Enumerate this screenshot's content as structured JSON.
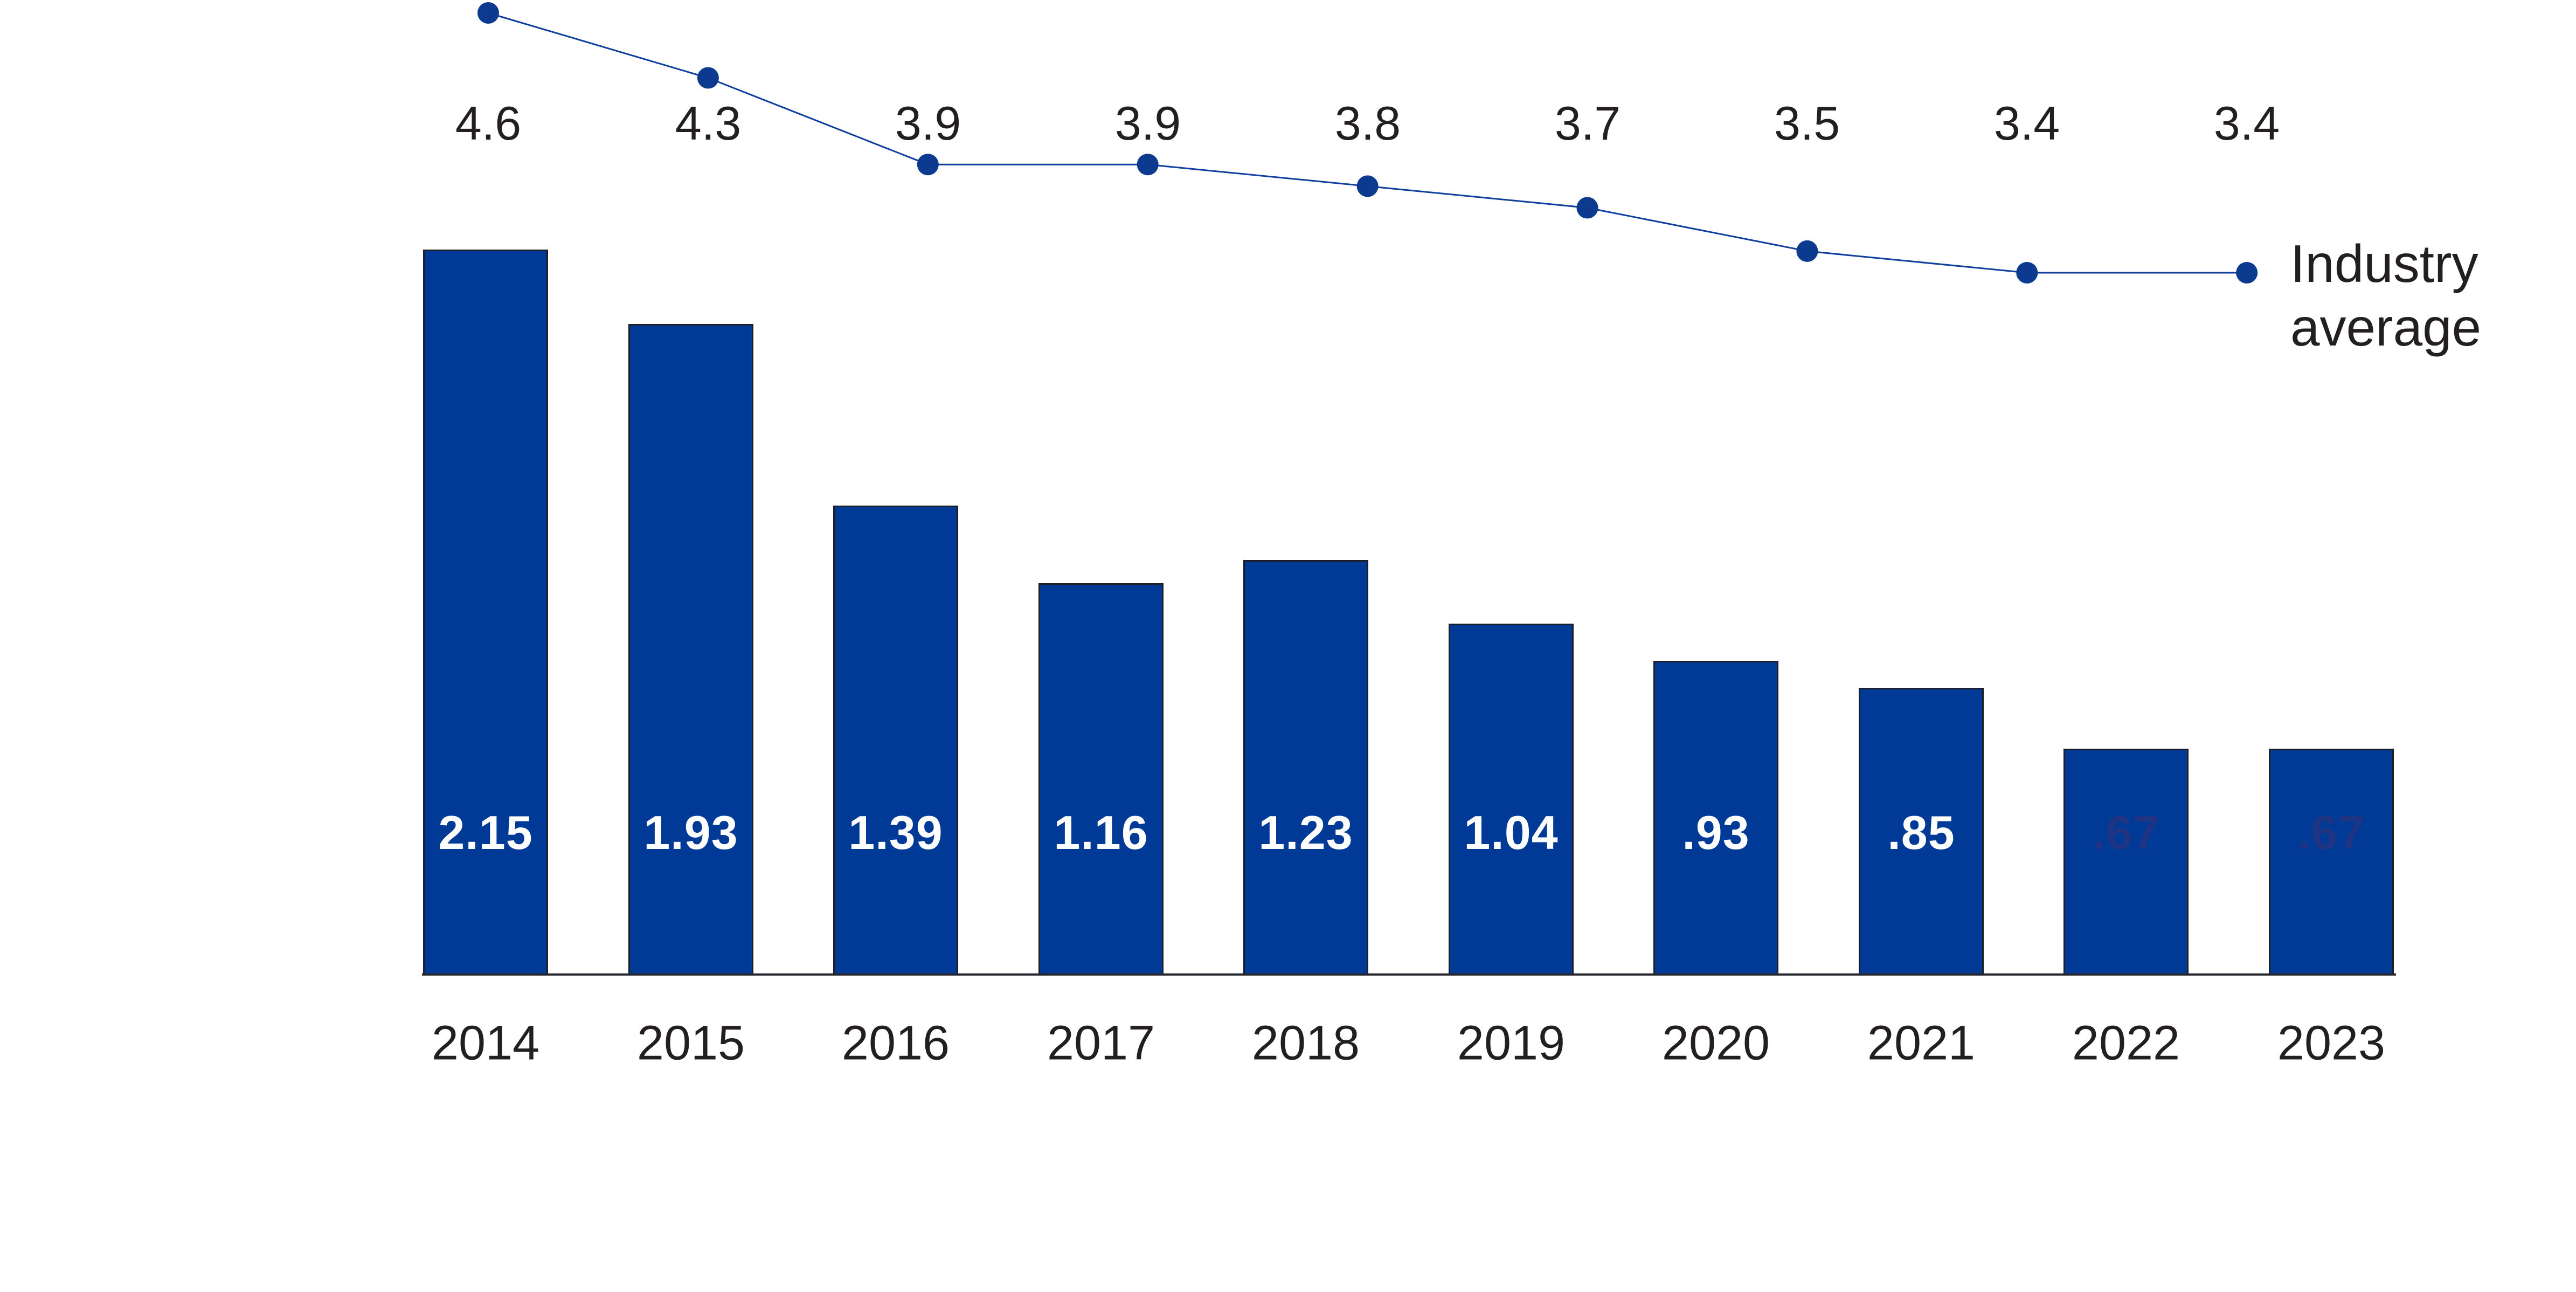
{
  "chart_data": {
    "type": "bar",
    "title": "",
    "xlabel": "",
    "ylabel": "",
    "categories": [
      "2014",
      "2015",
      "2016",
      "2017",
      "2018",
      "2019",
      "2020",
      "2021",
      "2022",
      "2023"
    ],
    "series": [
      {
        "type": "bar",
        "name": "bars",
        "values": [
          2.15,
          1.93,
          1.39,
          1.16,
          1.23,
          1.04,
          0.93,
          0.85,
          0.67,
          0.67
        ],
        "labels": [
          "2.15",
          "1.93",
          "1.39",
          "1.16",
          "1.23",
          "1.04",
          ".93",
          ".85",
          ".67",
          ".67"
        ],
        "label_muted": [
          false,
          false,
          false,
          false,
          false,
          false,
          false,
          false,
          true,
          true
        ]
      },
      {
        "type": "line",
        "name": "Industry average",
        "values": [
          4.6,
          4.3,
          3.9,
          3.9,
          3.8,
          3.7,
          3.5,
          3.4,
          3.4
        ],
        "labels": [
          "4.6",
          "4.3",
          "3.9",
          "3.9",
          "3.8",
          "3.7",
          "3.5",
          "3.4",
          "3.4"
        ]
      }
    ],
    "legend_label": "Industry average",
    "legend_position": "right of last line point",
    "ylim": [
      0,
      5
    ],
    "grid": false,
    "axis": "x baseline only, no ticks, no y axis"
  },
  "colors": {
    "background": "#FFFFFF",
    "bar_fill": "#003A97",
    "bar_outline": "#1E1E28",
    "bar_label": "#FFFFFF",
    "bar_label_muted": "#1F3583",
    "line": "#0E3F9E",
    "point": "#0B3A8F",
    "text": "#231F20",
    "axis_line": "#26262E"
  }
}
